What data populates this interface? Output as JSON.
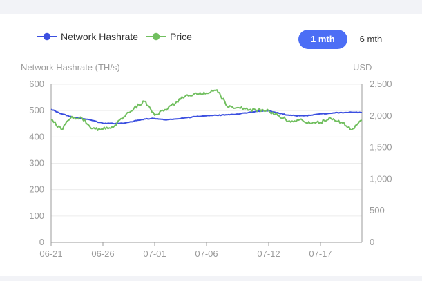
{
  "legend": {
    "hashrate": {
      "label": "Network Hashrate",
      "color": "#3b4fe0"
    },
    "price": {
      "label": "Price",
      "color": "#71bf5f"
    }
  },
  "range_buttons": [
    {
      "label": "1 mth",
      "active": true
    },
    {
      "label": "6 mth",
      "active": false
    }
  ],
  "chart_data": {
    "type": "line",
    "title": "",
    "left_axis": {
      "label": "Network Hashrate (TH/s)",
      "range": [
        0,
        600
      ],
      "ticks": [
        "0",
        "100",
        "200",
        "300",
        "400",
        "500",
        "600"
      ]
    },
    "right_axis": {
      "label": "USD",
      "range": [
        0,
        2500
      ],
      "ticks": [
        "0",
        "500",
        "1,000",
        "1,500",
        "2,000",
        "2,500"
      ]
    },
    "x_axis": {
      "range": [
        "2022-06-21",
        "2022-07-21"
      ],
      "ticks": [
        "06-21",
        "06-26",
        "07-01",
        "07-06",
        "07-12",
        "07-17"
      ]
    },
    "grid": true,
    "legend_position": "top-left",
    "series": [
      {
        "name": "Network Hashrate",
        "axis": "left",
        "color": "#3b4fe0",
        "x": [
          "06-21",
          "06-22",
          "06-23",
          "06-24",
          "06-25",
          "06-26",
          "06-27",
          "06-28",
          "06-29",
          "06-30",
          "07-01",
          "07-02",
          "07-03",
          "07-04",
          "07-05",
          "07-06",
          "07-07",
          "07-08",
          "07-09",
          "07-10",
          "07-11",
          "07-12",
          "07-13",
          "07-14",
          "07-15",
          "07-16",
          "07-17",
          "07-18",
          "07-19",
          "07-20",
          "07-21"
        ],
        "values": [
          505,
          488,
          476,
          470,
          462,
          452,
          451,
          452,
          460,
          468,
          470,
          465,
          468,
          473,
          477,
          480,
          482,
          484,
          487,
          492,
          498,
          500,
          490,
          482,
          480,
          482,
          488,
          490,
          493,
          494,
          492
        ]
      },
      {
        "name": "Price",
        "axis": "right",
        "color": "#71bf5f",
        "x": [
          "06-21",
          "06-22",
          "06-23",
          "06-24",
          "06-25",
          "06-26",
          "06-27",
          "06-28",
          "06-29",
          "06-30",
          "07-01",
          "07-02",
          "07-03",
          "07-04",
          "07-05",
          "07-06",
          "07-07",
          "07-08",
          "07-09",
          "07-10",
          "07-11",
          "07-12",
          "07-13",
          "07-14",
          "07-15",
          "07-16",
          "07-17",
          "07-18",
          "07-19",
          "07-20",
          "07-21"
        ],
        "values": [
          1940,
          1780,
          1990,
          1960,
          1800,
          1790,
          1820,
          1980,
          2120,
          2230,
          2010,
          2100,
          2200,
          2320,
          2360,
          2360,
          2410,
          2150,
          2130,
          2090,
          2100,
          2080,
          2000,
          1920,
          1940,
          1880,
          1900,
          1960,
          1900,
          1780,
          1930
        ]
      }
    ]
  }
}
